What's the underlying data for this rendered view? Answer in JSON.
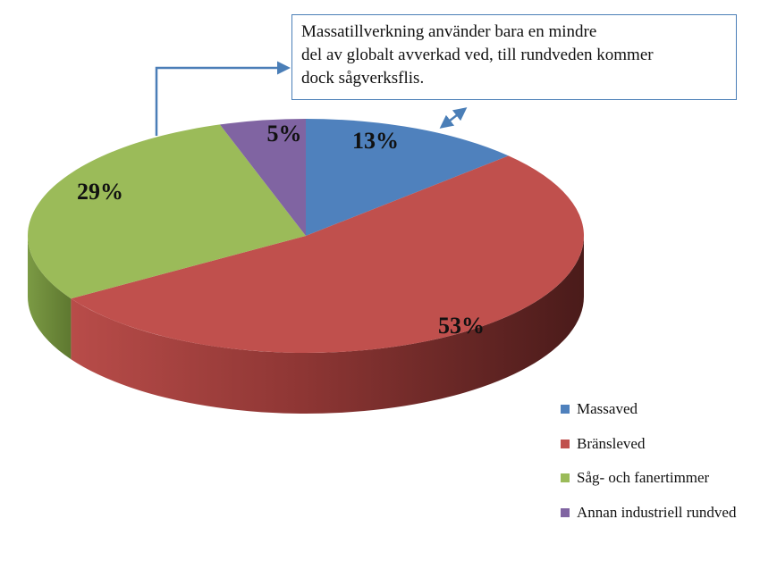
{
  "chart_data": {
    "type": "pie",
    "three_d": true,
    "series": [
      {
        "name": "Massaved",
        "value": 13,
        "label": "13%",
        "color": "#4f81bd"
      },
      {
        "name": "Bränsleved",
        "value": 53,
        "label": "53%",
        "color": "#c0504d"
      },
      {
        "name": "Såg- och fanertimmer",
        "value": 29,
        "label": "29%",
        "color": "#9bbb59"
      },
      {
        "name": "Annan industriell rundved",
        "value": 5,
        "label": "5%",
        "color": "#8064a2"
      }
    ],
    "legend_position": "bottom-right"
  },
  "callout": {
    "lines": [
      "Massatillverkning använder bara en mindre",
      "del av globalt avverkad ved, till rundveden kommer",
      "dock sågverksflis."
    ],
    "border_color": "#4a7eb7",
    "arrow_color": "#4a7eb7"
  }
}
